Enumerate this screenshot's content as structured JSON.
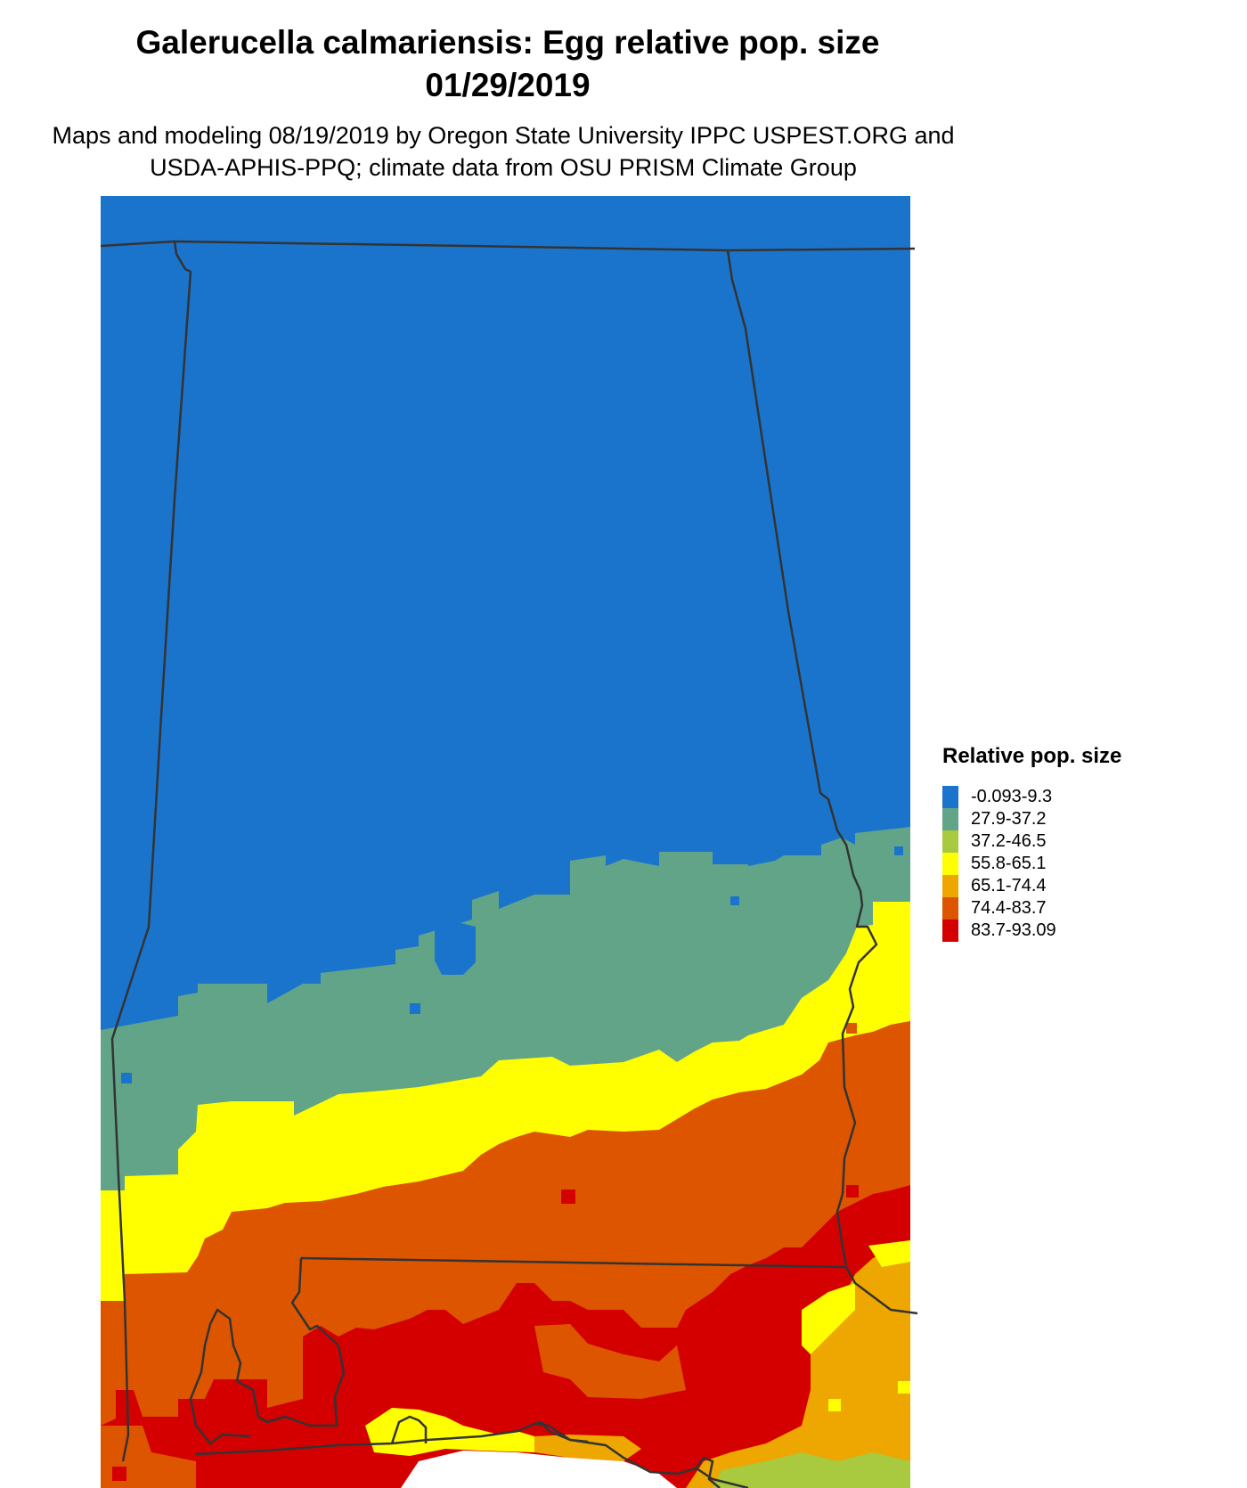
{
  "title_line1": "Galerucella calmariensis: Egg relative pop. size",
  "title_line2": "01/29/2019",
  "subtitle_line1": "Maps and modeling 08/19/2019 by Oregon State University IPPC USPEST.ORG and",
  "subtitle_line2": "USDA-APHIS-PPQ; climate data from OSU PRISM Climate Group",
  "legend": {
    "title": "Relative pop. size",
    "items": [
      {
        "label": "-0.093-9.3",
        "color": "#1b74cc"
      },
      {
        "label": "27.9-37.2",
        "color": "#62a488"
      },
      {
        "label": "37.2-46.5",
        "color": "#a9c93f"
      },
      {
        "label": "55.8-65.1",
        "color": "#ffff00"
      },
      {
        "label": "65.1-74.4",
        "color": "#eea600"
      },
      {
        "label": "74.4-83.7",
        "color": "#de5500"
      },
      {
        "label": "83.7-93.09",
        "color": "#d40000"
      }
    ]
  },
  "map": {
    "background_color": "#ffffff",
    "border_color": "#333333"
  }
}
